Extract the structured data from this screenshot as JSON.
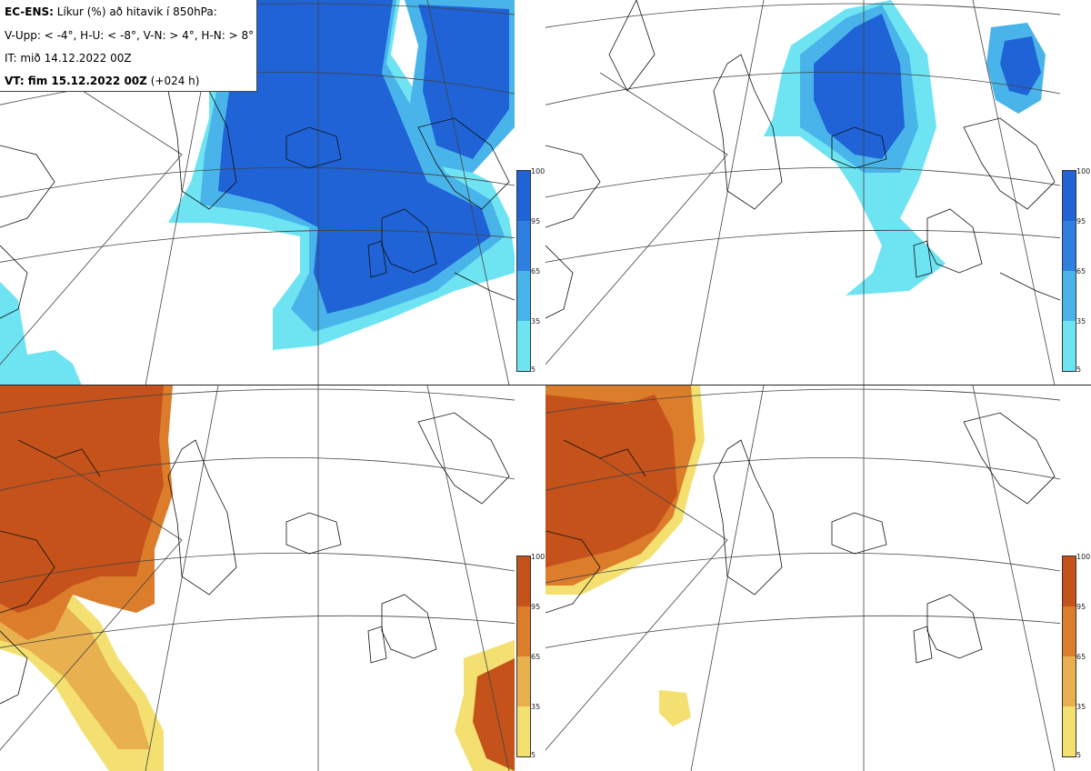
{
  "info": {
    "model": "EC-ENS:",
    "title": "Líkur (%) að hitavik í 850hPa:",
    "thresholds": "V-Upp: < -4°, H-U: < -8°, V-N: > 4°, H-N: > 8°",
    "initial_time": "IT: mið 14.12.2022 00Z",
    "valid_prefix": "VT: fim 15.12.2022 00Z",
    "valid_suffix": "(+024 h)"
  },
  "panels": [
    {
      "id": "upper-left",
      "palette": "blue",
      "threshold": "V-Upp"
    },
    {
      "id": "upper-right",
      "palette": "blue",
      "threshold": "H-U"
    },
    {
      "id": "lower-left",
      "palette": "orange",
      "threshold": "V-N"
    },
    {
      "id": "lower-right",
      "palette": "orange",
      "threshold": "H-N"
    }
  ],
  "legend": {
    "ticks": [
      "100",
      "95",
      "65",
      "35",
      "5"
    ]
  },
  "colors": {
    "blue_100": "#1f63d6",
    "blue_95": "#2f7fe0",
    "blue_65": "#49b4ea",
    "blue_35": "#6ee4f2",
    "blue_5": "#aef5fa",
    "orange_100": "#c4521a",
    "orange_95": "#dc7d2c",
    "orange_65": "#e8b04f",
    "orange_35": "#f3e070",
    "orange_5": "#fbf69a"
  }
}
